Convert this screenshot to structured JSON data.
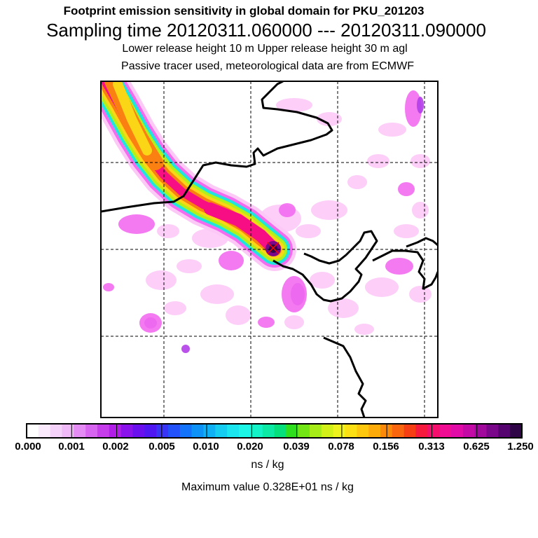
{
  "header": {
    "line1": "Footprint emission sensitivity in global domain for PKU_201203",
    "line2": "Sampling time   20120311.060000 --- 20120311.090000",
    "line3": "Lower release height   10 m          Upper release height   30 m    agl",
    "line4": "Passive tracer used, meteorological data are from ECMWF"
  },
  "colorbar": {
    "tick_labels": [
      "0.000",
      "0.001",
      "0.002",
      "0.005",
      "0.010",
      "0.020",
      "0.039",
      "0.078",
      "0.156",
      "0.313",
      "0.625",
      "1.250"
    ],
    "colors": [
      "#ffffff",
      "#fbeafd",
      "#f5d2fa",
      "#efb8f7",
      "#e48cf3",
      "#d865ef",
      "#c63eeb",
      "#b01ee8",
      "#8a12ea",
      "#6a10ee",
      "#4f18f2",
      "#3a34f6",
      "#2452fa",
      "#1473fb",
      "#0e92f8",
      "#10b0f4",
      "#16ccf1",
      "#1be6ef",
      "#1cf6e6",
      "#14f2c8",
      "#0be9a4",
      "#06e07c",
      "#2ddf1c",
      "#72e615",
      "#a7ec16",
      "#d2f118",
      "#eef31e",
      "#fde014",
      "#fdc70e",
      "#fdab0b",
      "#fb8a0b",
      "#f9660e",
      "#f73f14",
      "#f61a3c",
      "#f40f6c",
      "#f00c93",
      "#e10ca8",
      "#c40aa5",
      "#a1089c",
      "#7a0689",
      "#55046f",
      "#300547"
    ],
    "units": "ns / kg",
    "max_text": "Maximum value  0.328E+01 ns / kg"
  },
  "map": {
    "colors": {
      "coastline": "#000000",
      "gridline": "#000000",
      "frame": "#000000",
      "release_marker": "#ff0000"
    },
    "plume_colors": [
      "#fcc9f7",
      "#f36cf0",
      "#b33ee8",
      "#1fe4e0",
      "#b2f01a",
      "#fbd617",
      "#fb8012",
      "#f70e84"
    ]
  }
}
